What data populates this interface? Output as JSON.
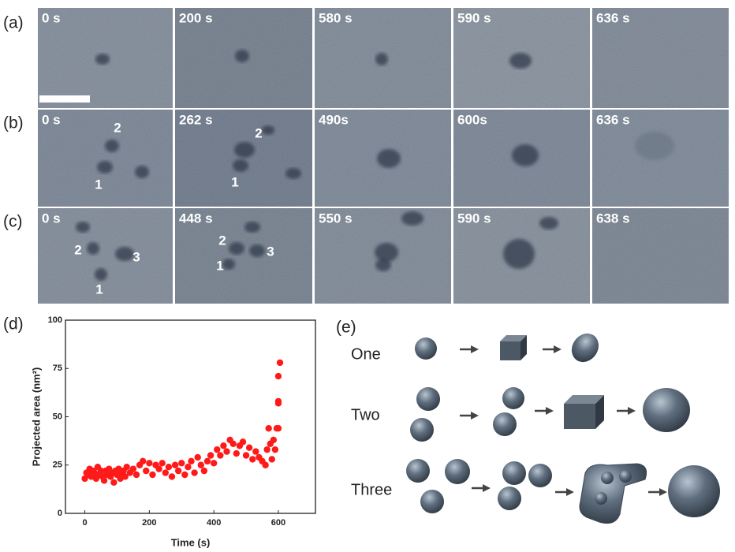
{
  "panel_labels": [
    "(a)",
    "(b)",
    "(c)",
    "(d)",
    "(e)"
  ],
  "image_rows": [
    {
      "frames": [
        {
          "time": "0 s"
        },
        {
          "time": "200 s"
        },
        {
          "time": "580 s"
        },
        {
          "time": "590 s"
        },
        {
          "time": "636 s"
        }
      ]
    },
    {
      "frames": [
        {
          "time": "0 s",
          "markers": [
            "2",
            "1"
          ]
        },
        {
          "time": "262 s",
          "markers": [
            "2",
            "1"
          ]
        },
        {
          "time": "490s"
        },
        {
          "time": "600s"
        },
        {
          "time": "636 s"
        }
      ]
    },
    {
      "frames": [
        {
          "time": "0 s",
          "markers": [
            "2",
            "3",
            "1"
          ]
        },
        {
          "time": "448 s",
          "markers": [
            "2",
            "3",
            "1"
          ]
        },
        {
          "time": "550 s"
        },
        {
          "time": "590 s"
        },
        {
          "time": "638 s"
        }
      ]
    }
  ],
  "chart_data": {
    "type": "scatter",
    "y_label": "Projected area (nm²)",
    "x_label": "Time (s)",
    "color": "#ff1a1a",
    "xlim": [
      -60,
      715
    ],
    "ylim": [
      0,
      100
    ],
    "xticks": [
      0,
      200,
      400,
      600
    ],
    "yticks": [
      0,
      25,
      50,
      75,
      100
    ],
    "x": [
      0,
      5,
      10,
      15,
      20,
      25,
      30,
      35,
      40,
      45,
      50,
      55,
      60,
      65,
      70,
      75,
      80,
      85,
      90,
      95,
      100,
      105,
      110,
      115,
      120,
      125,
      130,
      140,
      150,
      160,
      170,
      180,
      190,
      200,
      210,
      220,
      230,
      240,
      250,
      260,
      270,
      280,
      290,
      300,
      310,
      320,
      330,
      340,
      350,
      360,
      370,
      380,
      390,
      400,
      410,
      420,
      430,
      440,
      450,
      460,
      470,
      480,
      490,
      500,
      510,
      520,
      530,
      540,
      550,
      560,
      565,
      570,
      575,
      580,
      585,
      590,
      595,
      600,
      600,
      600,
      600,
      605
    ],
    "values": [
      18,
      21,
      20,
      23,
      19,
      22,
      21,
      18,
      24,
      20,
      22,
      19,
      17,
      22,
      20,
      23,
      19,
      21,
      16,
      22,
      20,
      23,
      18,
      21,
      22,
      19,
      24,
      21,
      23,
      20,
      25,
      27,
      22,
      26,
      20,
      25,
      23,
      26,
      21,
      24,
      19,
      25,
      22,
      26,
      20,
      24,
      27,
      21,
      29,
      25,
      22,
      27,
      30,
      26,
      33,
      30,
      35,
      32,
      38,
      36,
      31,
      35,
      37,
      30,
      34,
      28,
      32,
      29,
      27,
      25,
      33,
      44,
      36,
      28,
      38,
      33,
      44,
      44,
      57,
      58,
      71,
      78
    ]
  },
  "diagram": {
    "rows": [
      "One",
      "Two",
      "Three"
    ]
  }
}
